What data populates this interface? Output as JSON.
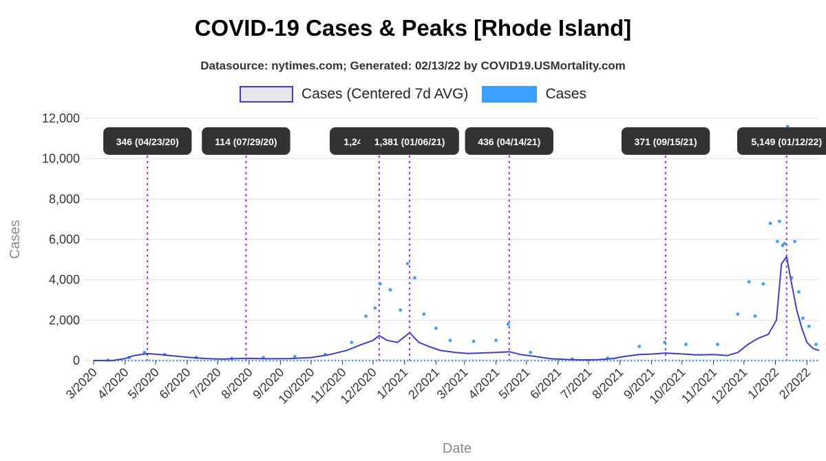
{
  "title": "COVID-19 Cases & Peaks [Rhode Island]",
  "subtitle": "Datasource: nytimes.com; Generated: 02/13/22 by COVID19.USMortality.com",
  "legend": {
    "avg_label": "Cases (Centered 7d AVG)",
    "cases_label": "Cases"
  },
  "colors": {
    "avg_line": "#3b3bdc",
    "cases_points": "#3aa0ff",
    "peak_line": "#a020f0",
    "label_bg": "#333333"
  },
  "chart_data": {
    "type": "line",
    "xlabel": "Date",
    "ylabel": "Cases",
    "x_range": [
      "2020-03-01",
      "2022-02-13"
    ],
    "ylim": [
      0,
      12000
    ],
    "y_ticks": [
      0,
      2000,
      4000,
      6000,
      8000,
      10000,
      12000
    ],
    "y_tick_labels": [
      "0",
      "2,000",
      "4,000",
      "6,000",
      "8,000",
      "10,000",
      "12,000"
    ],
    "x_tick_labels": [
      "3/2020",
      "4/2020",
      "5/2020",
      "6/2020",
      "7/2020",
      "8/2020",
      "9/2020",
      "10/2020",
      "11/2020",
      "12/2020",
      "1/2021",
      "2/2021",
      "3/2021",
      "4/2021",
      "5/2021",
      "6/2021",
      "7/2021",
      "8/2021",
      "9/2021",
      "10/2021",
      "11/2021",
      "12/2021",
      "1/2022",
      "2/2022"
    ],
    "x_tick_dates": [
      "2020-03-01",
      "2020-04-01",
      "2020-05-01",
      "2020-06-01",
      "2020-07-01",
      "2020-08-01",
      "2020-09-01",
      "2020-10-01",
      "2020-11-01",
      "2020-12-01",
      "2021-01-01",
      "2021-02-01",
      "2021-03-01",
      "2021-04-01",
      "2021-05-01",
      "2021-06-01",
      "2021-07-01",
      "2021-08-01",
      "2021-09-01",
      "2021-10-01",
      "2021-11-01",
      "2021-12-01",
      "2022-01-01",
      "2022-02-01"
    ],
    "grid": true,
    "legend_position": "top",
    "peaks": [
      {
        "date": "2020-04-23",
        "label": "346 (04/23/20)",
        "value": 346
      },
      {
        "date": "2020-07-29",
        "label": "114 (07/29/20)",
        "value": 114
      },
      {
        "date": "2020-12-07",
        "label": "1,240 (12/07/20)",
        "value": 1240
      },
      {
        "date": "2021-01-06",
        "label": "1,381 (01/06/21)",
        "value": 1381
      },
      {
        "date": "2021-04-14",
        "label": "436 (04/14/21)",
        "value": 436
      },
      {
        "date": "2021-09-15",
        "label": "371 (09/15/21)",
        "value": 371
      },
      {
        "date": "2022-01-12",
        "label": "5,149 (01/12/22)",
        "value": 5149
      }
    ],
    "series": [
      {
        "name": "Cases (Centered 7d AVG)",
        "x": [
          "2020-03-01",
          "2020-03-20",
          "2020-04-01",
          "2020-04-10",
          "2020-04-23",
          "2020-05-05",
          "2020-05-20",
          "2020-06-05",
          "2020-06-20",
          "2020-07-05",
          "2020-07-29",
          "2020-08-20",
          "2020-09-10",
          "2020-10-01",
          "2020-10-20",
          "2020-11-05",
          "2020-11-20",
          "2020-12-01",
          "2020-12-07",
          "2020-12-15",
          "2020-12-25",
          "2021-01-06",
          "2021-01-15",
          "2021-01-25",
          "2021-02-05",
          "2021-02-20",
          "2021-03-05",
          "2021-03-20",
          "2021-04-01",
          "2021-04-14",
          "2021-04-25",
          "2021-05-10",
          "2021-05-25",
          "2021-06-10",
          "2021-06-25",
          "2021-07-10",
          "2021-07-25",
          "2021-08-05",
          "2021-08-20",
          "2021-09-01",
          "2021-09-15",
          "2021-09-30",
          "2021-10-15",
          "2021-11-01",
          "2021-11-15",
          "2021-11-25",
          "2021-12-05",
          "2021-12-15",
          "2021-12-25",
          "2022-01-02",
          "2022-01-07",
          "2022-01-12",
          "2022-01-17",
          "2022-01-22",
          "2022-01-27",
          "2022-02-01",
          "2022-02-07",
          "2022-02-13"
        ],
        "y": [
          0,
          5,
          100,
          250,
          346,
          300,
          220,
          150,
          100,
          70,
          114,
          90,
          100,
          150,
          300,
          500,
          800,
          1000,
          1240,
          1000,
          900,
          1381,
          900,
          700,
          500,
          400,
          350,
          380,
          400,
          436,
          300,
          200,
          90,
          50,
          30,
          40,
          100,
          200,
          300,
          320,
          371,
          330,
          280,
          300,
          250,
          400,
          800,
          1100,
          1300,
          2000,
          4800,
          5149,
          3800,
          2500,
          1600,
          900,
          600,
          500
        ]
      },
      {
        "name": "Cases",
        "x": [
          "2020-03-15",
          "2020-04-05",
          "2020-04-20",
          "2020-05-10",
          "2020-06-10",
          "2020-07-15",
          "2020-08-15",
          "2020-09-15",
          "2020-10-15",
          "2020-11-10",
          "2020-11-24",
          "2020-12-03",
          "2020-12-08",
          "2020-12-18",
          "2020-12-28",
          "2021-01-04",
          "2021-01-11",
          "2021-01-20",
          "2021-02-01",
          "2021-02-15",
          "2021-03-10",
          "2021-04-01",
          "2021-04-13",
          "2021-05-05",
          "2021-06-15",
          "2021-07-20",
          "2021-08-20",
          "2021-09-14",
          "2021-10-05",
          "2021-11-05",
          "2021-11-25",
          "2021-12-06",
          "2021-12-12",
          "2021-12-20",
          "2021-12-27",
          "2022-01-03",
          "2022-01-05",
          "2022-01-08",
          "2022-01-10",
          "2022-01-13",
          "2022-01-17",
          "2022-01-20",
          "2022-01-24",
          "2022-01-28",
          "2022-02-03",
          "2022-02-10"
        ],
        "y": [
          20,
          150,
          400,
          300,
          150,
          100,
          150,
          200,
          300,
          900,
          2200,
          2600,
          3800,
          3500,
          2500,
          4800,
          4100,
          2300,
          1600,
          1000,
          950,
          1000,
          1800,
          400,
          80,
          120,
          700,
          900,
          800,
          800,
          2300,
          3900,
          2200,
          3800,
          6800,
          5900,
          6900,
          5700,
          5800,
          11600,
          4100,
          5900,
          3400,
          2100,
          1700,
          800
        ]
      }
    ]
  }
}
